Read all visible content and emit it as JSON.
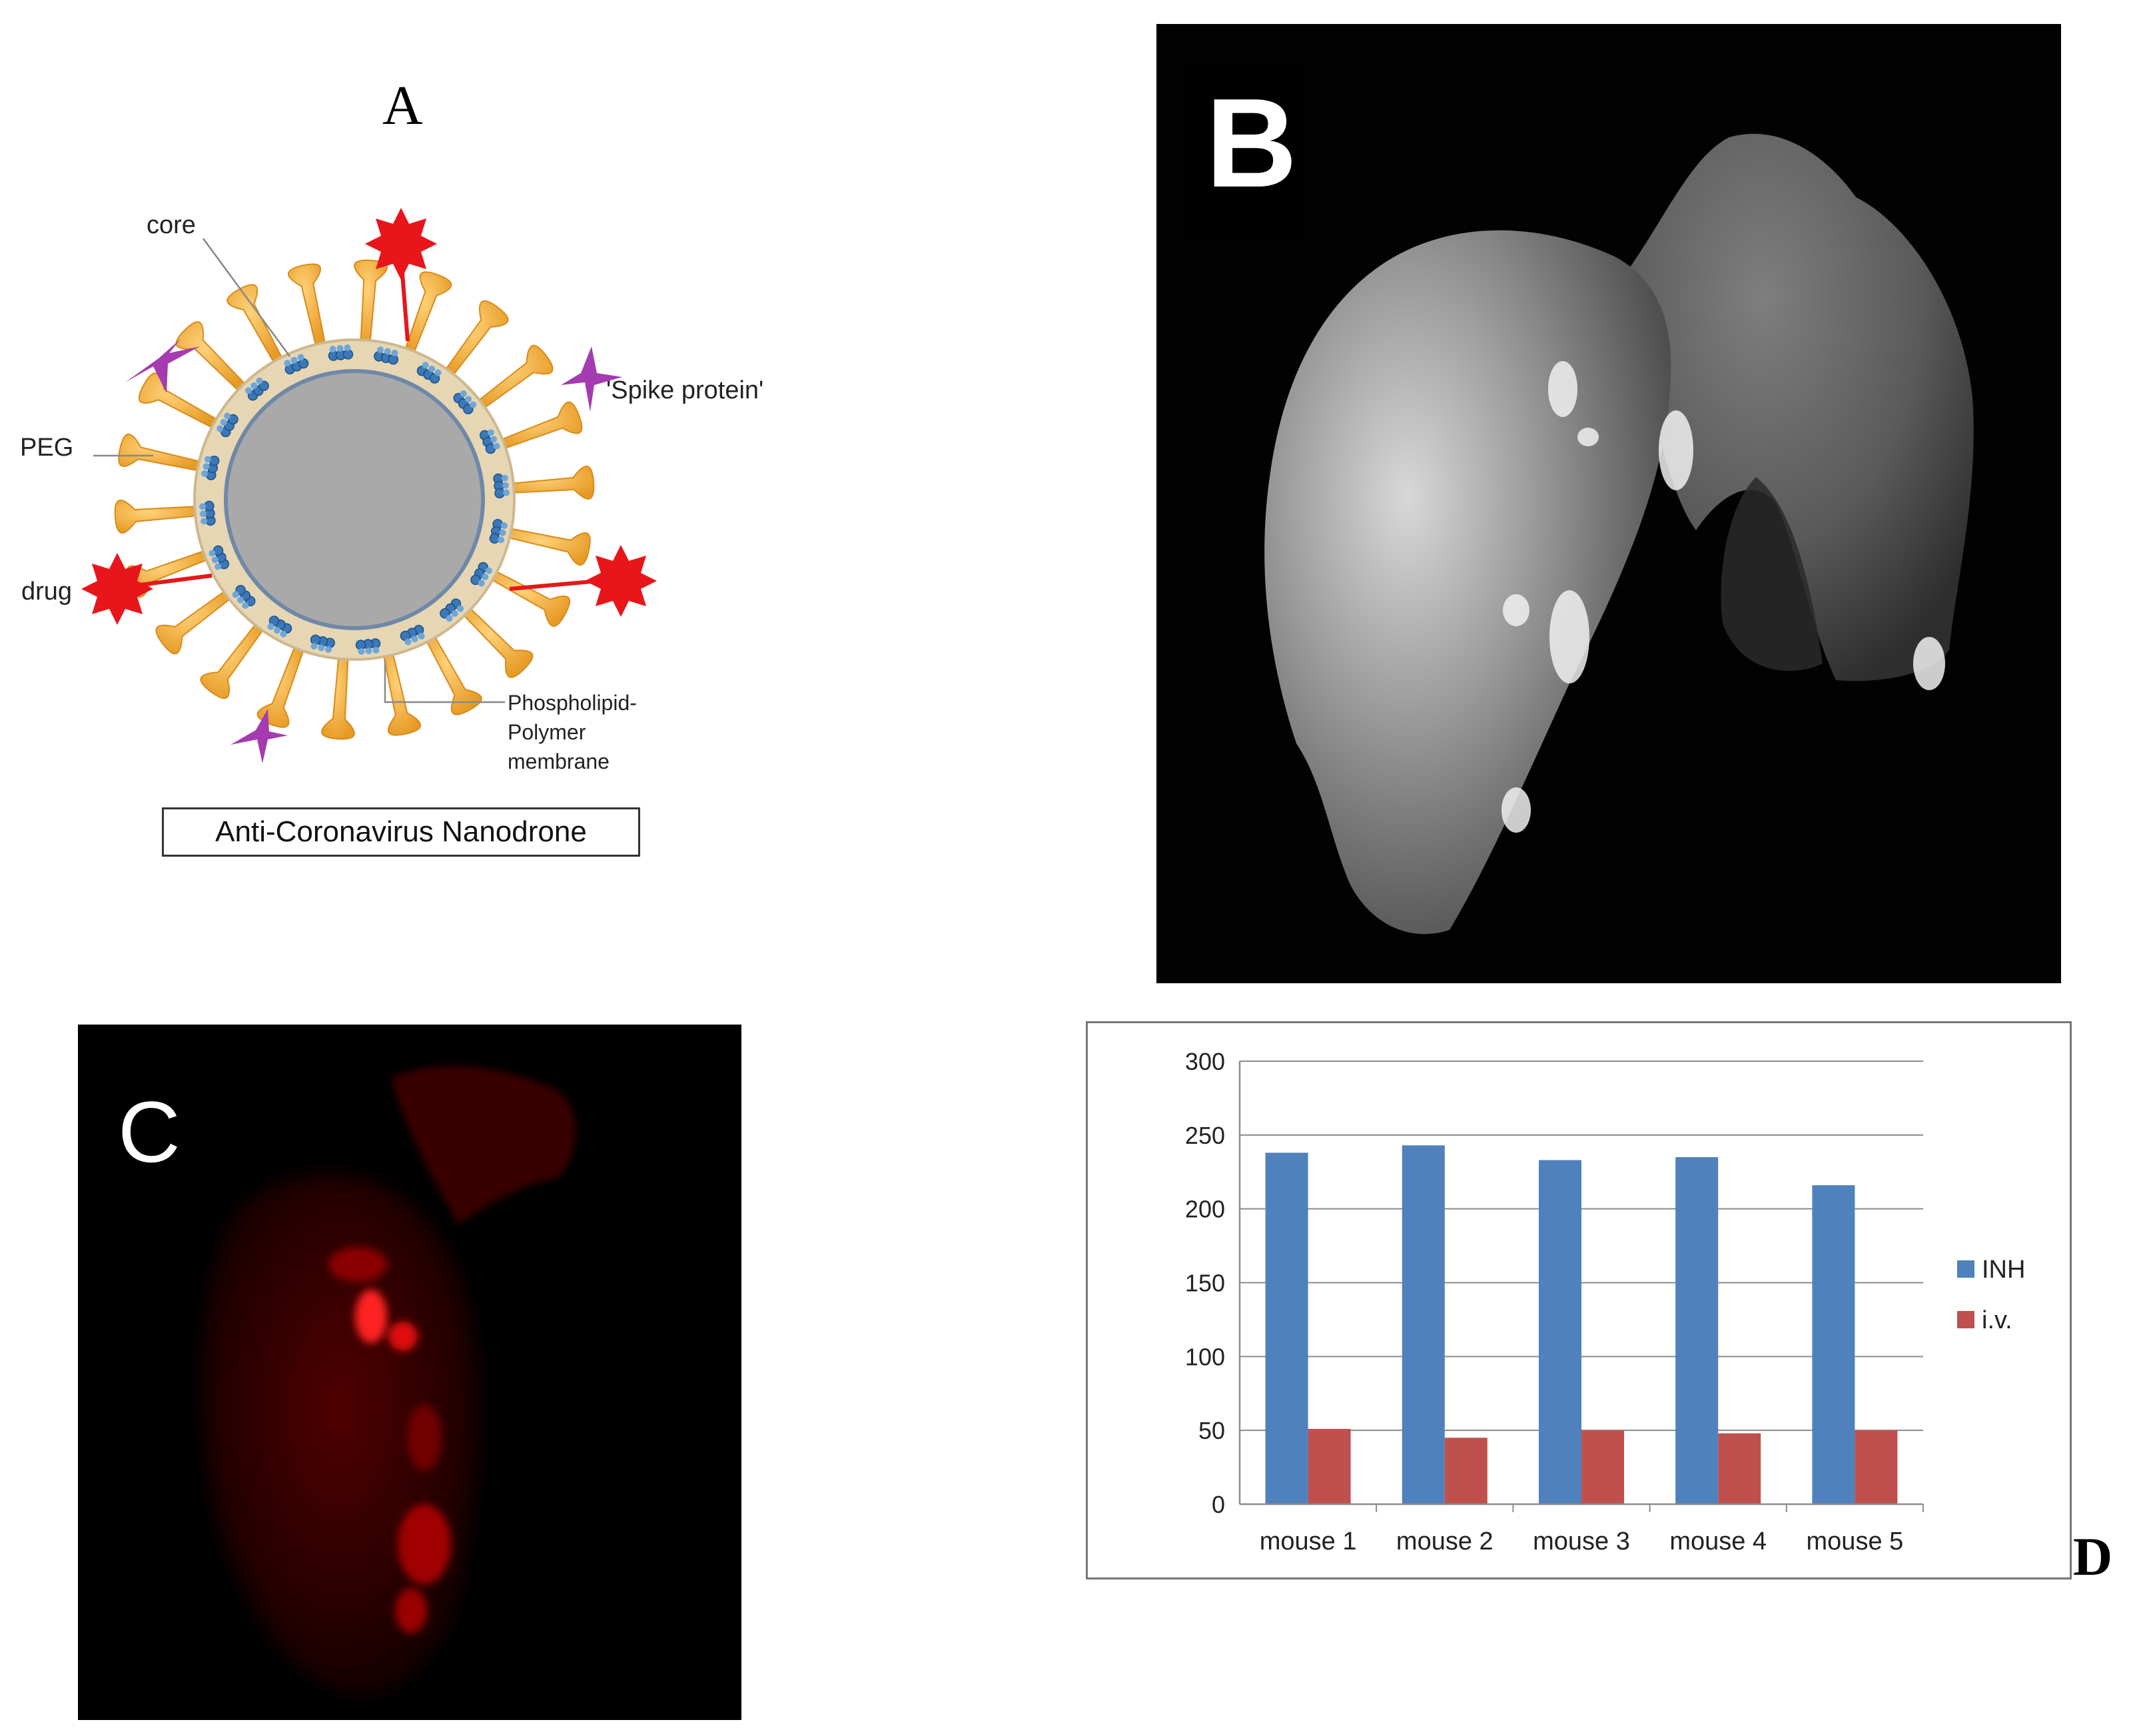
{
  "panel_a": {
    "letter": "A",
    "labels": {
      "core": "core",
      "peg": "PEG",
      "drug": "drug",
      "spike": "'Spike protein'",
      "membrane_1": "Phospholipid-",
      "membrane_2": "Polymer",
      "membrane_3": "membrane"
    },
    "caption": "Anti-Coronavirus Nanodrone",
    "colors": {
      "core": "#a9a9a9",
      "membrane": "#e6d6b4",
      "peg": "#f2a93b",
      "drug": "#e8151b",
      "spike": "#a53bb0",
      "lipid": "#3a78b8"
    }
  },
  "panel_b": {
    "letter": "B"
  },
  "panel_c": {
    "letter": "C"
  },
  "panel_d": {
    "letter": "D"
  },
  "chart_data": {
    "type": "bar",
    "categories": [
      "mouse 1",
      "mouse 2",
      "mouse 3",
      "mouse 4",
      "mouse 5"
    ],
    "series": [
      {
        "name": "INH",
        "values": [
          238,
          243,
          233,
          235,
          216
        ],
        "color": "#4f81bd"
      },
      {
        "name": "i.v.",
        "values": [
          51,
          45,
          50,
          48,
          50
        ],
        "color": "#c0504d"
      }
    ],
    "yticks": [
      0,
      50,
      100,
      150,
      200,
      250,
      300
    ],
    "ylim": [
      0,
      300
    ],
    "grid": true,
    "legend": "right"
  }
}
